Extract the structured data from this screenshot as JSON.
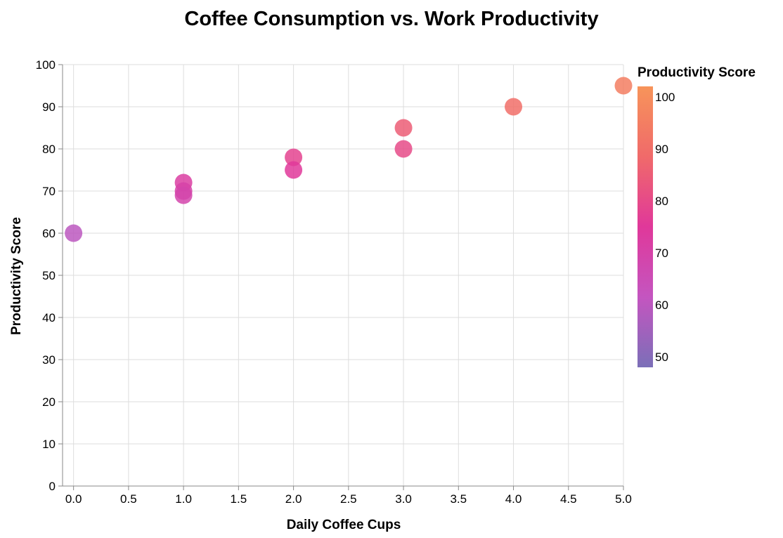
{
  "chart_data": {
    "type": "scatter",
    "title": "Coffee Consumption vs. Work Productivity",
    "xlabel": "Daily Coffee Cups",
    "ylabel": "Productivity Score",
    "xlim": [
      -0.1,
      5.0
    ],
    "ylim": [
      0,
      100
    ],
    "x_ticks": [
      "0.0",
      "0.5",
      "1.0",
      "1.5",
      "2.0",
      "2.5",
      "3.0",
      "3.5",
      "4.0",
      "4.5",
      "5.0"
    ],
    "y_ticks": [
      "0",
      "10",
      "20",
      "30",
      "40",
      "50",
      "60",
      "70",
      "80",
      "90",
      "100"
    ],
    "grid": true,
    "points": [
      {
        "x": 0,
        "y": 60
      },
      {
        "x": 1,
        "y": 72
      },
      {
        "x": 1,
        "y": 70
      },
      {
        "x": 1,
        "y": 69
      },
      {
        "x": 2,
        "y": 78
      },
      {
        "x": 2,
        "y": 75
      },
      {
        "x": 3,
        "y": 85
      },
      {
        "x": 3,
        "y": 80
      },
      {
        "x": 4,
        "y": 90
      },
      {
        "x": 5,
        "y": 95
      }
    ],
    "color_encoding": "Productivity Score",
    "legend": {
      "title": "Productivity Score",
      "placement": "right",
      "domain": [
        48,
        102
      ],
      "labels": [
        "100",
        "90",
        "80",
        "70",
        "60",
        "50"
      ],
      "colors": [
        "#7b6fb8",
        "#c455c0",
        "#e0389a",
        "#f06a6a",
        "#f7945a"
      ]
    }
  }
}
